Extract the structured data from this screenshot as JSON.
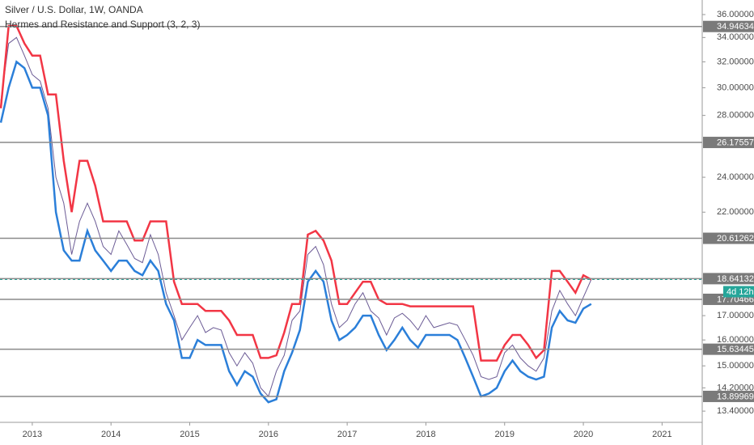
{
  "chart_data": {
    "type": "line",
    "title": "Silver / U.S. Dollar, 1W, OANDA",
    "subtitle": "Hermes and Resistance and Support (3, 2, 3)",
    "countdown": "4d 12h",
    "log_scale": true,
    "xlim": [
      2012.59,
      2021.51
    ],
    "xticks": [
      2013,
      2014,
      2015,
      2016,
      2017,
      2018,
      2019,
      2020,
      2021
    ],
    "ylim": [
      13.03,
      37.33
    ],
    "yticks": [
      {
        "value": 36,
        "label": "36.00000"
      },
      {
        "value": 34,
        "label": "34.00000"
      },
      {
        "value": 32,
        "label": "32.00000"
      },
      {
        "value": 30,
        "label": "30.00000"
      },
      {
        "value": 28,
        "label": "28.00000"
      },
      {
        "value": 24,
        "label": "24.00000"
      },
      {
        "value": 22,
        "label": "22.00000"
      },
      {
        "value": 17,
        "label": "17.00000"
      },
      {
        "value": 16,
        "label": "16.00000"
      },
      {
        "value": 15,
        "label": "15.00000"
      },
      {
        "value": 14.2,
        "label": "14.20000"
      },
      {
        "value": 13.4,
        "label": "13.40000"
      }
    ],
    "levels": [
      34.94634,
      26.17557,
      20.61262,
      18.64132,
      17.70466,
      15.63445,
      13.89969
    ],
    "x": [
      2012.6,
      2012.7,
      2012.8,
      2012.9,
      2013.0,
      2013.1,
      2013.2,
      2013.3,
      2013.4,
      2013.5,
      2013.6,
      2013.7,
      2013.8,
      2013.9,
      2014.0,
      2014.1,
      2014.2,
      2014.3,
      2014.4,
      2014.5,
      2014.6,
      2014.7,
      2014.8,
      2014.9,
      2015.0,
      2015.1,
      2015.2,
      2015.3,
      2015.4,
      2015.5,
      2015.6,
      2015.7,
      2015.8,
      2015.9,
      2016.0,
      2016.1,
      2016.2,
      2016.3,
      2016.4,
      2016.5,
      2016.6,
      2016.7,
      2016.8,
      2016.9,
      2017.0,
      2017.1,
      2017.2,
      2017.3,
      2017.4,
      2017.5,
      2017.6,
      2017.7,
      2017.8,
      2017.9,
      2018.0,
      2018.1,
      2018.2,
      2018.3,
      2018.4,
      2018.5,
      2018.6,
      2018.7,
      2018.8,
      2018.9,
      2019.0,
      2019.1,
      2019.2,
      2019.3,
      2019.4,
      2019.5,
      2019.6,
      2019.7,
      2019.8,
      2019.9,
      2020.0,
      2020.1
    ],
    "series": [
      {
        "color": "#6b5b95",
        "values": [
          29,
          33.5,
          34,
          32.5,
          31,
          30.5,
          28.5,
          24,
          22.5,
          19.8,
          21.5,
          22.5,
          21.5,
          20.2,
          19.8,
          21,
          20.3,
          19.6,
          19.4,
          20.8,
          19.8,
          18,
          17,
          16,
          16.5,
          17,
          16.3,
          16.5,
          16.4,
          15.5,
          15,
          15.5,
          15.1,
          14.2,
          13.9,
          14.8,
          15.4,
          16.8,
          17.2,
          19.8,
          20.2,
          19.3,
          17.5,
          16.5,
          16.8,
          17.5,
          18,
          17.2,
          16.9,
          16.2,
          16.9,
          17.1,
          16.8,
          16.4,
          17,
          16.5,
          16.6,
          16.7,
          16.6,
          16,
          15.4,
          14.6,
          14.5,
          14.6,
          15.5,
          15.8,
          15.3,
          15,
          14.8,
          15.3,
          17.2,
          18.1,
          17.5,
          17,
          17.8,
          18.6
        ]
      },
      {
        "color": "#f23645",
        "values": [
          28.5,
          35,
          35,
          33.5,
          32.5,
          32.5,
          29.5,
          29.5,
          25,
          22,
          25,
          25,
          23.5,
          21.5,
          21.5,
          21.5,
          21.5,
          20.5,
          20.5,
          21.5,
          21.5,
          21.5,
          18.5,
          17.5,
          17.5,
          17.5,
          17.2,
          17.2,
          17.2,
          16.8,
          16.2,
          16.2,
          16.2,
          15.3,
          15.3,
          15.4,
          16.3,
          17.5,
          17.5,
          20.8,
          21,
          20.5,
          19.5,
          17.5,
          17.5,
          18,
          18.5,
          18.5,
          17.7,
          17.5,
          17.5,
          17.5,
          17.4,
          17.4,
          17.4,
          17.4,
          17.4,
          17.4,
          17.4,
          17.4,
          17.4,
          15.2,
          15.2,
          15.2,
          15.8,
          16.2,
          16.2,
          15.8,
          15.3,
          15.6,
          19,
          19,
          18.5,
          18,
          18.8,
          18.6
        ]
      },
      {
        "color": "#2b7fd9",
        "values": [
          27.5,
          30,
          32,
          31.5,
          30,
          30,
          28,
          22,
          20,
          19.5,
          19.5,
          21,
          20,
          19.5,
          19,
          19.5,
          19.5,
          19,
          18.8,
          19.5,
          19,
          17.5,
          16.8,
          15.3,
          15.3,
          16,
          15.8,
          15.8,
          15.8,
          14.8,
          14.3,
          14.8,
          14.6,
          14,
          13.7,
          13.8,
          14.8,
          15.5,
          16.4,
          18.5,
          19,
          18.5,
          16.8,
          16,
          16.2,
          16.5,
          17,
          17,
          16.2,
          15.6,
          16,
          16.5,
          16,
          15.7,
          16.2,
          16.2,
          16.2,
          16.2,
          16,
          15.3,
          14.6,
          13.9,
          14,
          14.2,
          14.8,
          15.2,
          14.8,
          14.6,
          14.5,
          14.6,
          16.5,
          17.2,
          16.8,
          16.7,
          17.3,
          17.5
        ]
      }
    ]
  }
}
